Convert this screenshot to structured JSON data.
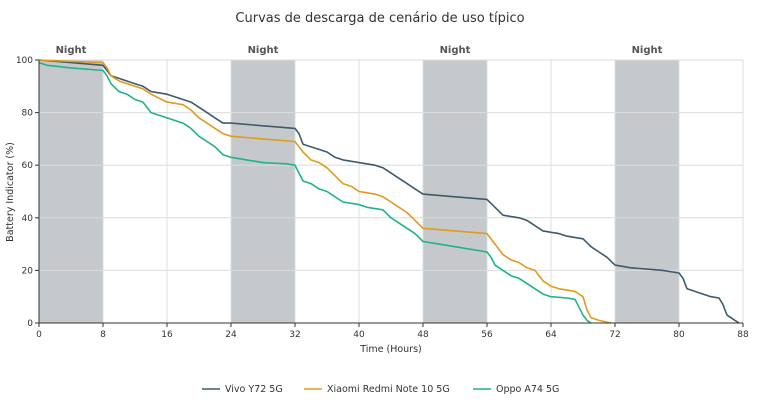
{
  "chart_data": {
    "type": "line",
    "title": "Curvas de descarga de cenário de uso típico",
    "xlabel": "Time (Hours)",
    "ylabel": "Battery Indicator (%)",
    "xlim": [
      0,
      88
    ],
    "ylim": [
      0,
      100
    ],
    "xticks": [
      0,
      8,
      16,
      24,
      32,
      40,
      48,
      56,
      64,
      72,
      80,
      88
    ],
    "yticks": [
      0,
      20,
      40,
      60,
      80,
      100
    ],
    "grid": true,
    "legend_position": "bottom",
    "night_bands": [
      {
        "label": "Night",
        "start": 0,
        "end": 8
      },
      {
        "label": "Night",
        "start": 24,
        "end": 32
      },
      {
        "label": "Night",
        "start": 48,
        "end": 56
      },
      {
        "label": "Night",
        "start": 72,
        "end": 80
      }
    ],
    "night_band_color": "#c5c9cc",
    "series": [
      {
        "name": "Vivo Y72 5G",
        "color": "#3f5b6b",
        "points": [
          [
            0,
            100
          ],
          [
            4,
            99
          ],
          [
            8,
            98
          ],
          [
            8.5,
            96
          ],
          [
            9,
            94
          ],
          [
            10,
            93
          ],
          [
            12,
            91
          ],
          [
            13,
            90
          ],
          [
            14,
            88
          ],
          [
            16,
            87
          ],
          [
            18,
            85
          ],
          [
            19,
            84
          ],
          [
            20,
            82
          ],
          [
            21,
            80
          ],
          [
            22,
            78
          ],
          [
            23,
            76
          ],
          [
            24,
            76
          ],
          [
            28,
            75
          ],
          [
            32,
            74
          ],
          [
            32.5,
            72
          ],
          [
            33,
            68
          ],
          [
            35,
            66
          ],
          [
            36,
            65
          ],
          [
            37,
            63
          ],
          [
            38,
            62
          ],
          [
            40,
            61
          ],
          [
            42,
            60
          ],
          [
            43,
            59
          ],
          [
            44,
            57
          ],
          [
            45,
            55
          ],
          [
            46,
            53
          ],
          [
            47,
            51
          ],
          [
            48,
            49
          ],
          [
            52,
            48
          ],
          [
            56,
            47
          ],
          [
            57,
            44
          ],
          [
            58,
            41
          ],
          [
            60,
            40
          ],
          [
            61,
            39
          ],
          [
            62,
            37
          ],
          [
            63,
            35
          ],
          [
            64,
            34.5
          ],
          [
            65,
            34
          ],
          [
            66,
            33
          ],
          [
            68,
            32
          ],
          [
            69,
            29
          ],
          [
            70,
            27
          ],
          [
            71,
            25
          ],
          [
            72,
            22
          ],
          [
            74,
            21
          ],
          [
            76,
            20.5
          ],
          [
            78,
            20
          ],
          [
            80,
            19
          ],
          [
            80.5,
            17
          ],
          [
            81,
            13
          ],
          [
            82,
            12
          ],
          [
            83,
            11
          ],
          [
            84,
            10
          ],
          [
            85,
            9.5
          ],
          [
            85.5,
            7
          ],
          [
            86,
            3
          ],
          [
            87,
            1
          ],
          [
            87.5,
            0
          ]
        ]
      },
      {
        "name": "Xiaomi Redmi Note 10 5G",
        "color": "#e09b1f",
        "points": [
          [
            0,
            100
          ],
          [
            4,
            99.5
          ],
          [
            8,
            99
          ],
          [
            8.5,
            97
          ],
          [
            9,
            94
          ],
          [
            10,
            92
          ],
          [
            12,
            90
          ],
          [
            13,
            89
          ],
          [
            14,
            87
          ],
          [
            16,
            84
          ],
          [
            18,
            83
          ],
          [
            19,
            81
          ],
          [
            20,
            78
          ],
          [
            21,
            76
          ],
          [
            22,
            74
          ],
          [
            23,
            72
          ],
          [
            24,
            71
          ],
          [
            28,
            70
          ],
          [
            32,
            69
          ],
          [
            32.5,
            67
          ],
          [
            33,
            65
          ],
          [
            34,
            62
          ],
          [
            35,
            61
          ],
          [
            36,
            59
          ],
          [
            37,
            56
          ],
          [
            38,
            53
          ],
          [
            39,
            52
          ],
          [
            40,
            50
          ],
          [
            42,
            49
          ],
          [
            43,
            48
          ],
          [
            44,
            46
          ],
          [
            45,
            44
          ],
          [
            46,
            42
          ],
          [
            47,
            39
          ],
          [
            48,
            36
          ],
          [
            52,
            35
          ],
          [
            56,
            34
          ],
          [
            57,
            30
          ],
          [
            58,
            26
          ],
          [
            59,
            24
          ],
          [
            60,
            23
          ],
          [
            61,
            21
          ],
          [
            62,
            20
          ],
          [
            63,
            16
          ],
          [
            64,
            14
          ],
          [
            65,
            13
          ],
          [
            66,
            12.5
          ],
          [
            67,
            12
          ],
          [
            68,
            10
          ],
          [
            68.5,
            5
          ],
          [
            69,
            2
          ],
          [
            70,
            1
          ],
          [
            71,
            0.3
          ],
          [
            71.5,
            0
          ]
        ]
      },
      {
        "name": "Oppo A74 5G",
        "color": "#1fb38b",
        "points": [
          [
            0,
            99
          ],
          [
            1,
            98
          ],
          [
            4,
            97
          ],
          [
            8,
            96
          ],
          [
            8.5,
            94
          ],
          [
            9,
            91
          ],
          [
            10,
            88
          ],
          [
            11,
            87
          ],
          [
            12,
            85
          ],
          [
            13,
            84
          ],
          [
            14,
            80
          ],
          [
            15,
            79
          ],
          [
            16,
            78
          ],
          [
            17,
            77
          ],
          [
            18,
            76
          ],
          [
            19,
            74
          ],
          [
            20,
            71
          ],
          [
            21,
            69
          ],
          [
            22,
            67
          ],
          [
            23,
            64
          ],
          [
            24,
            63
          ],
          [
            28,
            61
          ],
          [
            31,
            60.5
          ],
          [
            32,
            60
          ],
          [
            32.5,
            57
          ],
          [
            33,
            54
          ],
          [
            34,
            53
          ],
          [
            35,
            51
          ],
          [
            36,
            50
          ],
          [
            37,
            48
          ],
          [
            38,
            46
          ],
          [
            40,
            45
          ],
          [
            41,
            44
          ],
          [
            43,
            43
          ],
          [
            44,
            40
          ],
          [
            45,
            38
          ],
          [
            46,
            36
          ],
          [
            47,
            34
          ],
          [
            48,
            31
          ],
          [
            50,
            30
          ],
          [
            52,
            29
          ],
          [
            56,
            27
          ],
          [
            56.5,
            25
          ],
          [
            57,
            22
          ],
          [
            58,
            20
          ],
          [
            59,
            18
          ],
          [
            60,
            17
          ],
          [
            61,
            15
          ],
          [
            62,
            13
          ],
          [
            63,
            11
          ],
          [
            64,
            10
          ],
          [
            66,
            9.5
          ],
          [
            67,
            9
          ],
          [
            67.5,
            6
          ],
          [
            68,
            3
          ],
          [
            68.5,
            1
          ],
          [
            69,
            0
          ]
        ]
      }
    ]
  }
}
